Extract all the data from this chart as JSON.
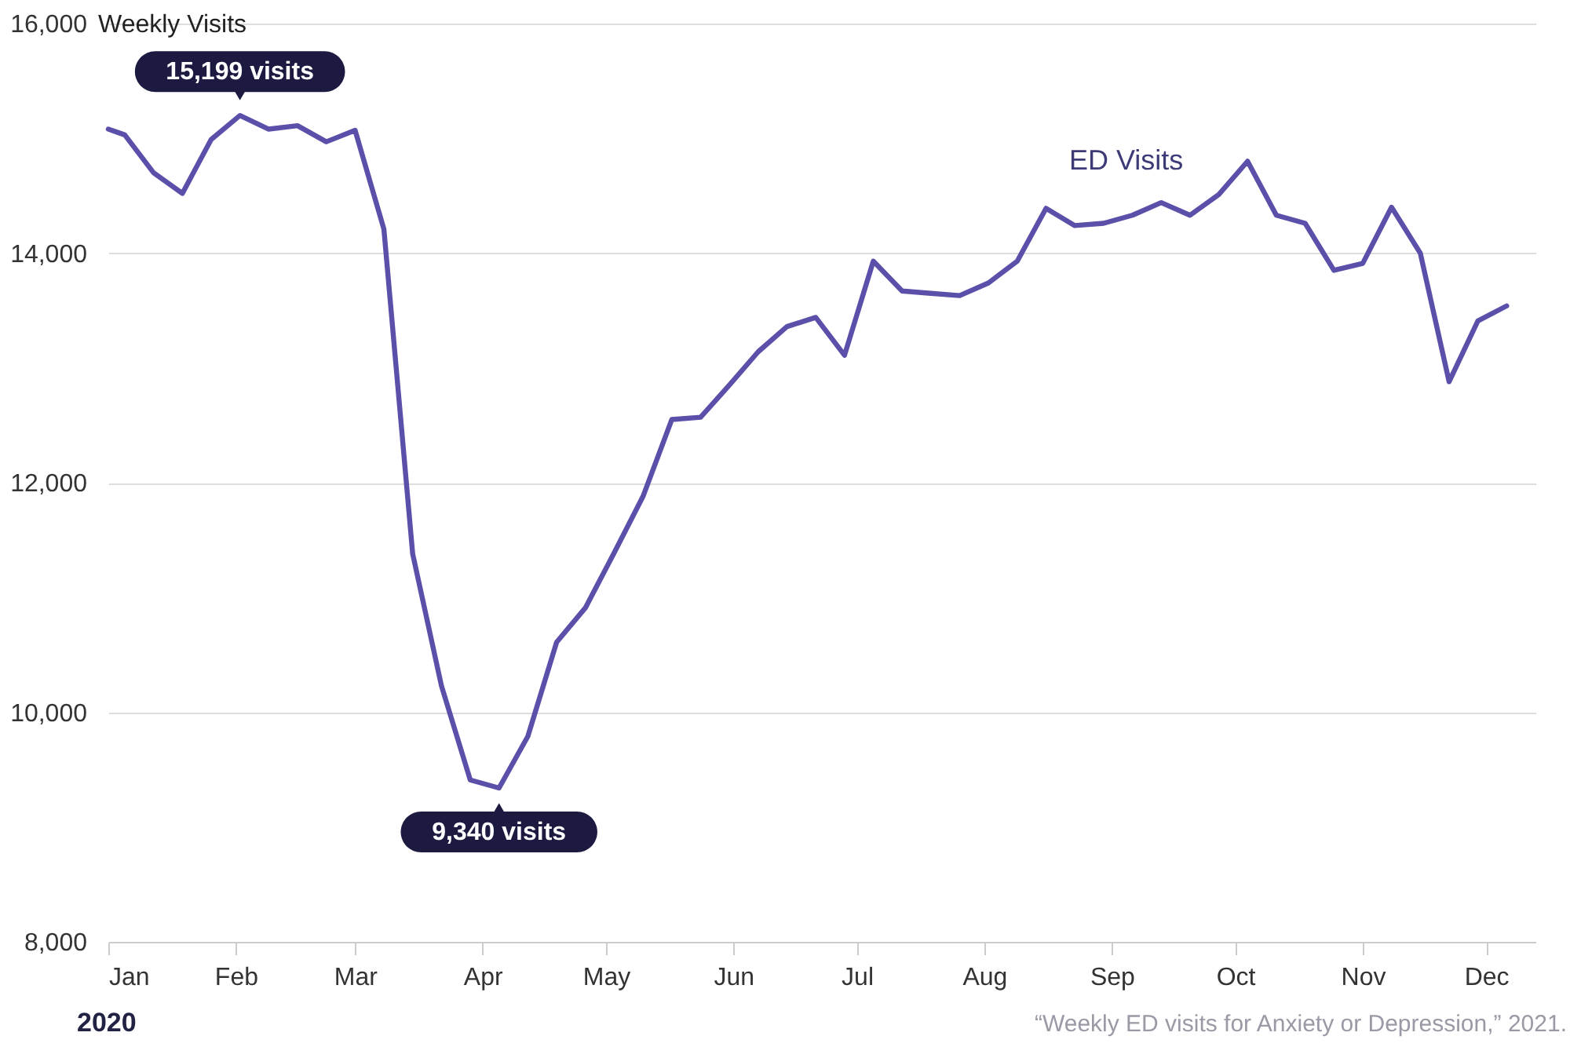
{
  "chart_data": {
    "type": "line",
    "ylabel": "Weekly Visits",
    "x": [
      "2020-01-01",
      "2020-01-05",
      "2020-01-12",
      "2020-01-19",
      "2020-01-26",
      "2020-02-02",
      "2020-02-09",
      "2020-02-16",
      "2020-02-23",
      "2020-03-01",
      "2020-03-08",
      "2020-03-15",
      "2020-03-22",
      "2020-03-29",
      "2020-04-05",
      "2020-04-12",
      "2020-04-19",
      "2020-04-26",
      "2020-05-03",
      "2020-05-10",
      "2020-05-17",
      "2020-05-24",
      "2020-05-31",
      "2020-06-07",
      "2020-06-14",
      "2020-06-21",
      "2020-06-28",
      "2020-07-05",
      "2020-07-12",
      "2020-07-19",
      "2020-07-26",
      "2020-08-02",
      "2020-08-09",
      "2020-08-16",
      "2020-08-23",
      "2020-08-30",
      "2020-09-06",
      "2020-09-13",
      "2020-09-20",
      "2020-09-27",
      "2020-10-04",
      "2020-10-11",
      "2020-10-18",
      "2020-10-25",
      "2020-11-01",
      "2020-11-08",
      "2020-11-15",
      "2020-11-22",
      "2020-11-29",
      "2020-12-06"
    ],
    "series": [
      {
        "name": "ED Visits",
        "color": "#5a4fa9",
        "values": [
          15080,
          15030,
          14700,
          14520,
          14990,
          15199,
          15080,
          15110,
          14970,
          15070,
          14210,
          11380,
          10230,
          9410,
          9340,
          9790,
          10610,
          10910,
          11390,
          11880,
          12550,
          12570,
          12850,
          13140,
          13360,
          13440,
          13110,
          13930,
          13670,
          13650,
          13630,
          13740,
          13930,
          14390,
          14240,
          14260,
          14330,
          14440,
          14330,
          14510,
          14800,
          14330,
          14260,
          13850,
          13910,
          14400,
          14000,
          12880,
          13410,
          13540
        ]
      }
    ],
    "xlim": [
      "2020-01-01",
      "2020-12-13"
    ],
    "xticks": [
      {
        "value": "2020-01-01",
        "label": "Jan"
      },
      {
        "value": "2020-02-01",
        "label": "Feb"
      },
      {
        "value": "2020-03-01",
        "label": "Mar"
      },
      {
        "value": "2020-04-01",
        "label": "Apr"
      },
      {
        "value": "2020-05-01",
        "label": "May"
      },
      {
        "value": "2020-06-01",
        "label": "Jun"
      },
      {
        "value": "2020-07-01",
        "label": "Jul"
      },
      {
        "value": "2020-08-01",
        "label": "Aug"
      },
      {
        "value": "2020-09-01",
        "label": "Sep"
      },
      {
        "value": "2020-10-01",
        "label": "Oct"
      },
      {
        "value": "2020-11-01",
        "label": "Nov"
      },
      {
        "value": "2020-12-01",
        "label": "Dec"
      }
    ],
    "ylim": [
      8000,
      16000
    ],
    "yticks": [
      {
        "value": 8000,
        "label": "8,000"
      },
      {
        "value": 10000,
        "label": "10,000"
      },
      {
        "value": 12000,
        "label": "12,000"
      },
      {
        "value": 14000,
        "label": "14,000"
      },
      {
        "value": 16000,
        "label": "16,000"
      }
    ],
    "grid": "y",
    "marker": "none",
    "line_style": "solid",
    "annotations": [
      {
        "text": "15,199 visits",
        "x": "2020-02-02",
        "y": 15199
      },
      {
        "text": "9,340 visits",
        "x": "2020-04-05",
        "y": 9340
      },
      "2020",
      "“Weekly ED visits for Anxiety or Depression,” 2021."
    ]
  }
}
